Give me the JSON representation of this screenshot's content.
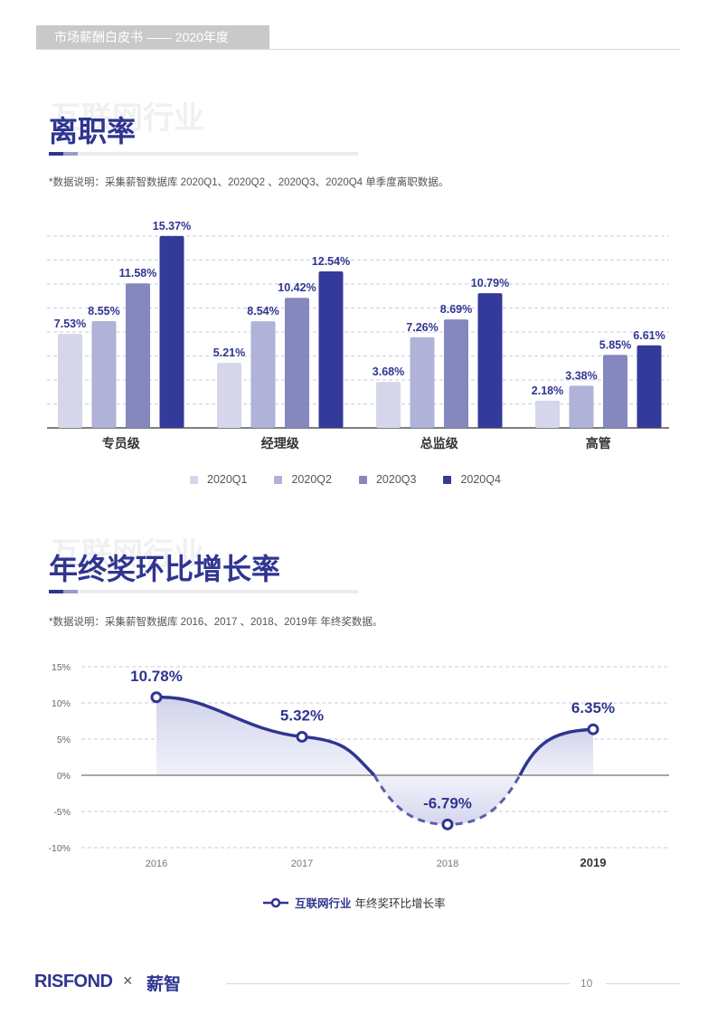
{
  "header": {
    "tab_label": "市场薪酬白皮书 —— 2020年度"
  },
  "section1": {
    "watermark": "互联网行业",
    "title": "离职率",
    "note": "*数据说明：采集薪智数据库 2020Q1、2020Q2 、2020Q3、2020Q4 单季度离职数据。"
  },
  "section2": {
    "watermark": "互联网行业",
    "title": "年终奖环比增长率",
    "note": "*数据说明：采集薪智数据库 2016、2017 、2018、2019年 年终奖数据。"
  },
  "colors": {
    "q1": "#d5d6ea",
    "q2": "#b0b2d7",
    "q3": "#8587bf",
    "q4": "#333a99",
    "accent": "#2f3590"
  },
  "chart_data": [
    {
      "type": "bar",
      "categories": [
        "专员级",
        "经理级",
        "总监级",
        "高管"
      ],
      "series": [
        {
          "name": "2020Q1",
          "values": [
            7.53,
            5.21,
            3.68,
            2.18
          ]
        },
        {
          "name": "2020Q2",
          "values": [
            8.55,
            8.54,
            7.26,
            3.38
          ]
        },
        {
          "name": "2020Q3",
          "values": [
            11.58,
            10.42,
            8.69,
            5.85
          ]
        },
        {
          "name": "2020Q4",
          "values": [
            15.37,
            12.54,
            10.79,
            6.61
          ]
        }
      ],
      "value_suffix": "%",
      "grid": true,
      "legend": "bottom"
    },
    {
      "type": "area",
      "x": [
        "2016",
        "2017",
        "2018",
        "2019"
      ],
      "series": [
        {
          "name": "",
          "values": [
            10.78,
            5.32,
            -6.79,
            6.35
          ]
        }
      ],
      "y_ticks": [
        "15%",
        "10%",
        "5%",
        "0%",
        "-5%",
        "-10%"
      ],
      "ylim": [
        -10,
        15
      ],
      "value_suffix": "%",
      "grid": true,
      "legend": "bottom"
    }
  ],
  "legend2": {
    "brand": "互联网行业",
    "label": "年终奖环比增长率"
  },
  "footer": {
    "brand1": "RISFOND",
    "x": "×",
    "brand2": "薪智",
    "page": "10"
  }
}
